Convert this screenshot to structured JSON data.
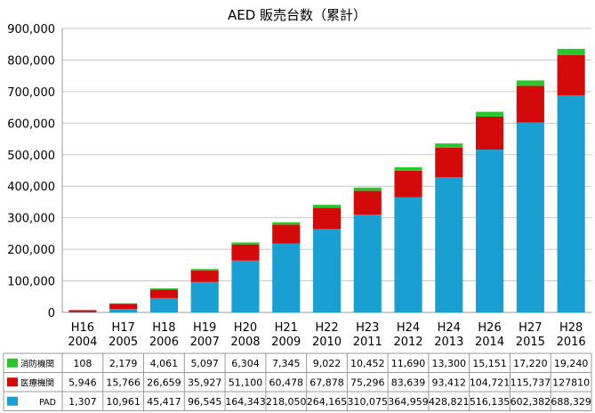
{
  "chart_data": {
    "type": "bar",
    "stacked": true,
    "title": "AED 販売台数（累計）",
    "categories": [
      [
        "H16",
        "2004"
      ],
      [
        "H17",
        "2005"
      ],
      [
        "H18",
        "2006"
      ],
      [
        "H19",
        "2007"
      ],
      [
        "H20",
        "2008"
      ],
      [
        "H21",
        "2009"
      ],
      [
        "H22",
        "2010"
      ],
      [
        "H23",
        "2011"
      ],
      [
        "H24",
        "2012"
      ],
      [
        "H24",
        "2013"
      ],
      [
        "H26",
        "2014"
      ],
      [
        "H27",
        "2015"
      ],
      [
        "H28",
        "2016"
      ]
    ],
    "series": [
      {
        "name": "PAD",
        "color": "#1a9fd3",
        "values": [
          1307,
          10961,
          45417,
          96545,
          164343,
          218050,
          264165,
          310075,
          364959,
          428821,
          516135,
          602382,
          688329
        ],
        "labels": [
          "1,307",
          "10,961",
          "45,417",
          "96,545",
          "164,343",
          "218,050",
          "264,165",
          "310,075",
          "364,959",
          "428,821",
          "516,135",
          "602,382",
          "688,329"
        ]
      },
      {
        "name": "医療機関",
        "color": "#d40a0a",
        "values": [
          5946,
          15766,
          26659,
          35927,
          51100,
          60478,
          67878,
          75296,
          83639,
          93412,
          104721,
          115737,
          127810
        ],
        "labels": [
          "5,946",
          "15,766",
          "26,659",
          "35,927",
          "51,100",
          "60,478",
          "67,878",
          "75,296",
          "83,639",
          "93,412",
          "104,721",
          "115,737",
          "127810"
        ]
      },
      {
        "name": "消防機関",
        "color": "#29c72b",
        "values": [
          108,
          2179,
          4061,
          5097,
          6304,
          7345,
          9022,
          10452,
          11690,
          13300,
          15151,
          17220,
          19240
        ],
        "labels": [
          "108",
          "2,179",
          "4,061",
          "5,097",
          "6,304",
          "7,345",
          "9,022",
          "10,452",
          "11,690",
          "13,300",
          "15,151",
          "17,220",
          "19,240"
        ]
      }
    ],
    "ylim": [
      0,
      900000
    ],
    "yticks": [
      "0",
      "100,000",
      "200,000",
      "300,000",
      "400,000",
      "500,000",
      "600,000",
      "700,000",
      "800,000",
      "900,000"
    ],
    "grid": true,
    "legend": "data-table-left"
  }
}
